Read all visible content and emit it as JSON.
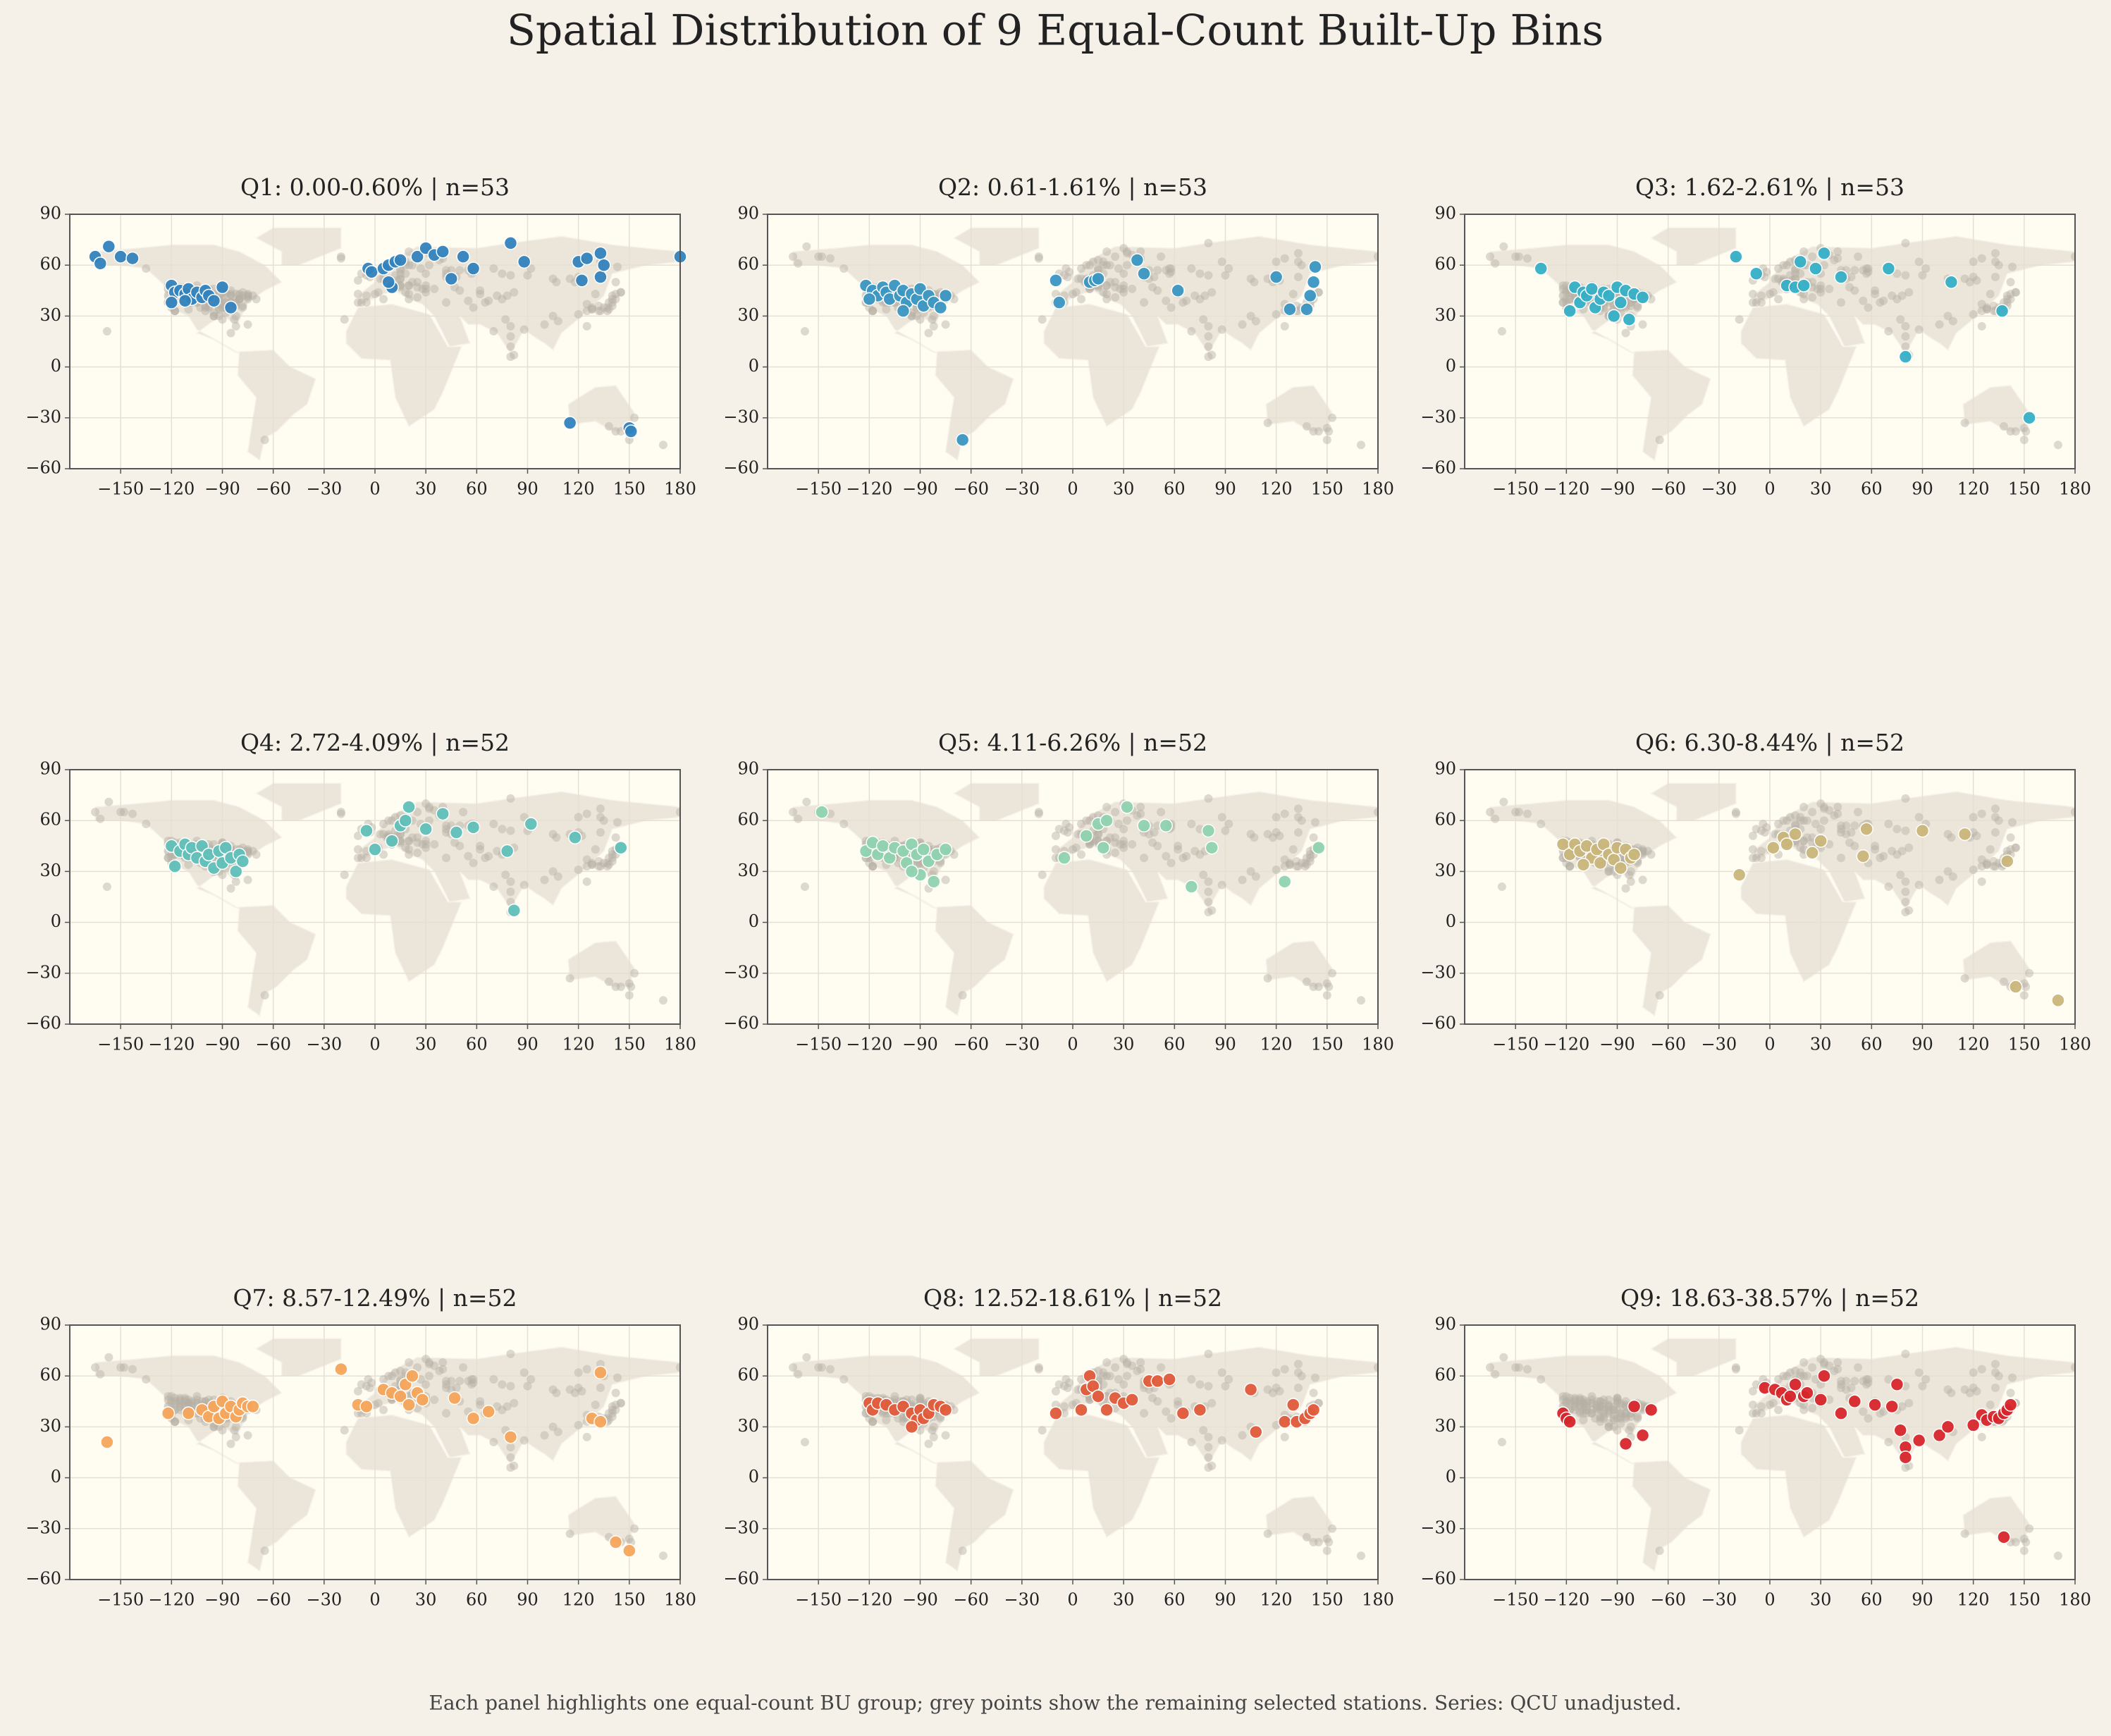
{
  "title": "Spatial Distribution of 9 Equal-Count Built-Up Bins",
  "note": "Each panel highlights one equal-count BU group; grey points show the remaining selected stations. Series: QCU unadjusted.",
  "chart_data": [
    {
      "type": "scatter",
      "title": "Q1: 0.00-0.60% | n=53",
      "color": "#3182bd",
      "grid": true,
      "xlim": [
        -180,
        180
      ],
      "ylim": [
        -60,
        90
      ],
      "xticks": [
        {
          "value": -150,
          "label": "−150"
        },
        {
          "value": -120,
          "label": "−120"
        },
        {
          "value": -90,
          "label": "−90"
        },
        {
          "value": -60,
          "label": "−60"
        },
        {
          "value": -30,
          "label": "−30"
        },
        0,
        30,
        60,
        90,
        120,
        150,
        180
      ],
      "yticks": [
        {
          "value": -60,
          "label": "−60"
        },
        {
          "value": -30,
          "label": "−30"
        },
        0,
        30,
        60,
        90
      ],
      "x": [
        -165,
        -162,
        -157,
        -150,
        -143,
        -120,
        -118,
        -115,
        -112,
        -110,
        -108,
        -105,
        -102,
        -100,
        -98,
        -95,
        -90,
        -85,
        -120,
        -112,
        -4,
        -2,
        5,
        8,
        10,
        12,
        15,
        8,
        25,
        30,
        35,
        40,
        45,
        52,
        58,
        80,
        88,
        120,
        122,
        125,
        133,
        133,
        135,
        115,
        150,
        151,
        180
      ],
      "values": [
        65,
        61,
        71,
        65,
        64,
        48,
        44,
        45,
        43,
        46,
        40,
        44,
        41,
        45,
        42,
        39,
        47,
        35,
        38,
        39,
        58,
        56,
        58,
        60,
        47,
        62,
        63,
        50,
        65,
        70,
        66,
        68,
        52,
        65,
        58,
        73,
        62,
        62,
        51,
        64,
        67,
        53,
        60,
        -33,
        -36,
        -38,
        65
      ]
    },
    {
      "type": "scatter",
      "title": "Q2: 0.61-1.61% | n=53",
      "color": "#3a96c2",
      "grid": true,
      "xlim": [
        -180,
        180
      ],
      "ylim": [
        -60,
        90
      ],
      "xticks": [
        {
          "value": -150,
          "label": "−150"
        },
        {
          "value": -120,
          "label": "−120"
        },
        {
          "value": -90,
          "label": "−90"
        },
        {
          "value": -60,
          "label": "−60"
        },
        {
          "value": -30,
          "label": "−30"
        },
        0,
        30,
        60,
        90,
        120,
        150,
        180
      ],
      "yticks": [
        {
          "value": -60,
          "label": "−60"
        },
        {
          "value": -30,
          "label": "−30"
        },
        0,
        30,
        60,
        90
      ],
      "x": [
        -122,
        -118,
        -115,
        -112,
        -110,
        -108,
        -105,
        -102,
        -100,
        -98,
        -95,
        -92,
        -90,
        -88,
        -85,
        -82,
        -78,
        -75,
        -120,
        -100,
        -65,
        -10,
        -8,
        10,
        13,
        15,
        38,
        42,
        62,
        120,
        128,
        138,
        140,
        143,
        142
      ],
      "values": [
        48,
        45,
        42,
        47,
        44,
        40,
        48,
        42,
        45,
        38,
        43,
        40,
        46,
        36,
        42,
        38,
        35,
        42,
        40,
        33,
        -43,
        51,
        38,
        50,
        51,
        52,
        63,
        55,
        45,
        53,
        34,
        34,
        42,
        59,
        50
      ]
    },
    {
      "type": "scatter",
      "title": "Q3: 1.62-2.61% | n=53",
      "color": "#35afc6",
      "grid": true,
      "xlim": [
        -180,
        180
      ],
      "ylim": [
        -60,
        90
      ],
      "xticks": [
        {
          "value": -150,
          "label": "−150"
        },
        {
          "value": -120,
          "label": "−120"
        },
        {
          "value": -90,
          "label": "−90"
        },
        {
          "value": -60,
          "label": "−60"
        },
        {
          "value": -30,
          "label": "−30"
        },
        0,
        30,
        60,
        90,
        120,
        150,
        180
      ],
      "yticks": [
        {
          "value": -60,
          "label": "−60"
        },
        {
          "value": -30,
          "label": "−30"
        },
        0,
        30,
        60,
        90
      ],
      "x": [
        -135,
        -115,
        -112,
        -110,
        -108,
        -105,
        -103,
        -100,
        -98,
        -95,
        -92,
        -90,
        -88,
        -85,
        -83,
        -80,
        -75,
        -118,
        -20,
        -8,
        10,
        15,
        18,
        20,
        27,
        32,
        42,
        70,
        80,
        107,
        137,
        153
      ],
      "values": [
        58,
        47,
        38,
        44,
        42,
        46,
        35,
        40,
        44,
        42,
        30,
        47,
        38,
        45,
        28,
        43,
        41,
        33,
        65,
        55,
        48,
        47,
        62,
        48,
        58,
        67,
        53,
        58,
        6,
        50,
        33,
        -30
      ]
    },
    {
      "type": "scatter",
      "title": "Q4: 2.72-4.09% | n=52",
      "color": "#5fc0b8",
      "grid": true,
      "xlim": [
        -180,
        180
      ],
      "ylim": [
        -60,
        90
      ],
      "xticks": [
        {
          "value": -150,
          "label": "−150"
        },
        {
          "value": -120,
          "label": "−120"
        },
        {
          "value": -90,
          "label": "−90"
        },
        {
          "value": -60,
          "label": "−60"
        },
        {
          "value": -30,
          "label": "−30"
        },
        0,
        30,
        60,
        90,
        120,
        150,
        180
      ],
      "yticks": [
        {
          "value": -60,
          "label": "−60"
        },
        {
          "value": -30,
          "label": "−30"
        },
        0,
        30,
        60,
        90
      ],
      "x": [
        -120,
        -118,
        -115,
        -112,
        -110,
        -108,
        -105,
        -102,
        -100,
        -98,
        -95,
        -92,
        -90,
        -88,
        -85,
        -82,
        -80,
        -78,
        -5,
        0,
        10,
        15,
        18,
        20,
        30,
        40,
        48,
        58,
        78,
        82,
        92,
        118,
        145
      ],
      "values": [
        45,
        33,
        42,
        46,
        40,
        44,
        38,
        45,
        36,
        40,
        32,
        42,
        35,
        44,
        38,
        30,
        40,
        36,
        54,
        43,
        48,
        57,
        60,
        68,
        55,
        64,
        53,
        56,
        42,
        7,
        58,
        50,
        44
      ]
    },
    {
      "type": "scatter",
      "title": "Q5: 4.11-6.26% | n=52",
      "color": "#8fd3b0",
      "grid": true,
      "xlim": [
        -180,
        180
      ],
      "ylim": [
        -60,
        90
      ],
      "xticks": [
        {
          "value": -150,
          "label": "−150"
        },
        {
          "value": -120,
          "label": "−120"
        },
        {
          "value": -90,
          "label": "−90"
        },
        {
          "value": -60,
          "label": "−60"
        },
        {
          "value": -30,
          "label": "−30"
        },
        0,
        30,
        60,
        90,
        120,
        150,
        180
      ],
      "yticks": [
        {
          "value": -60,
          "label": "−60"
        },
        {
          "value": -30,
          "label": "−30"
        },
        0,
        30,
        60,
        90
      ],
      "x": [
        -148,
        -122,
        -118,
        -115,
        -112,
        -108,
        -105,
        -100,
        -98,
        -95,
        -92,
        -90,
        -88,
        -85,
        -82,
        -80,
        -75,
        -95,
        -5,
        8,
        15,
        18,
        20,
        32,
        42,
        55,
        70,
        80,
        82,
        125,
        145
      ],
      "values": [
        65,
        42,
        47,
        40,
        45,
        38,
        44,
        42,
        35,
        46,
        40,
        28,
        43,
        36,
        24,
        40,
        43,
        30,
        38,
        51,
        58,
        44,
        60,
        68,
        57,
        57,
        21,
        54,
        44,
        24,
        44
      ]
    },
    {
      "type": "scatter",
      "title": "Q6: 6.30-8.44% | n=52",
      "color": "#c9b67a",
      "grid": true,
      "xlim": [
        -180,
        180
      ],
      "ylim": [
        -60,
        90
      ],
      "xticks": [
        {
          "value": -150,
          "label": "−150"
        },
        {
          "value": -120,
          "label": "−120"
        },
        {
          "value": -90,
          "label": "−90"
        },
        {
          "value": -60,
          "label": "−60"
        },
        {
          "value": -30,
          "label": "−30"
        },
        0,
        30,
        60,
        90,
        120,
        150,
        180
      ],
      "yticks": [
        {
          "value": -60,
          "label": "−60"
        },
        {
          "value": -30,
          "label": "−30"
        },
        0,
        30,
        60,
        90
      ],
      "x": [
        -122,
        -118,
        -115,
        -112,
        -108,
        -105,
        -102,
        -100,
        -98,
        -95,
        -92,
        -90,
        -88,
        -85,
        -82,
        -80,
        -110,
        -18,
        2,
        8,
        10,
        15,
        25,
        30,
        55,
        57,
        90,
        115,
        140,
        145,
        170
      ],
      "values": [
        46,
        40,
        46,
        42,
        45,
        38,
        43,
        35,
        46,
        40,
        37,
        44,
        32,
        43,
        38,
        40,
        34,
        28,
        44,
        50,
        46,
        52,
        41,
        48,
        39,
        55,
        54,
        52,
        36,
        -38,
        -46
      ]
    },
    {
      "type": "scatter",
      "title": "Q7: 8.57-12.49% | n=52",
      "color": "#f5a55a",
      "grid": true,
      "xlim": [
        -180,
        180
      ],
      "ylim": [
        -60,
        90
      ],
      "xticks": [
        {
          "value": -150,
          "label": "−150"
        },
        {
          "value": -120,
          "label": "−120"
        },
        {
          "value": -90,
          "label": "−90"
        },
        {
          "value": -60,
          "label": "−60"
        },
        {
          "value": -30,
          "label": "−30"
        },
        0,
        30,
        60,
        90,
        120,
        150,
        180
      ],
      "yticks": [
        {
          "value": -60,
          "label": "−60"
        },
        {
          "value": -30,
          "label": "−30"
        },
        0,
        30,
        60,
        90
      ],
      "x": [
        -158,
        -122,
        -110,
        -102,
        -98,
        -95,
        -92,
        -90,
        -88,
        -85,
        -82,
        -80,
        -78,
        -75,
        -72,
        -20,
        -10,
        -5,
        5,
        10,
        15,
        18,
        20,
        22,
        25,
        28,
        47,
        58,
        67,
        80,
        128,
        133,
        133,
        142,
        150
      ],
      "values": [
        21,
        38,
        38,
        40,
        36,
        42,
        35,
        45,
        38,
        42,
        36,
        40,
        44,
        42,
        42,
        64,
        43,
        42,
        52,
        50,
        48,
        55,
        43,
        60,
        50,
        46,
        47,
        35,
        39,
        24,
        35,
        62,
        33,
        -38,
        -43
      ]
    },
    {
      "type": "scatter",
      "title": "Q8: 12.52-18.61% | n=52",
      "color": "#e05a3a",
      "grid": true,
      "xlim": [
        -180,
        180
      ],
      "ylim": [
        -60,
        90
      ],
      "xticks": [
        {
          "value": -150,
          "label": "−150"
        },
        {
          "value": -120,
          "label": "−120"
        },
        {
          "value": -90,
          "label": "−90"
        },
        {
          "value": -60,
          "label": "−60"
        },
        {
          "value": -30,
          "label": "−30"
        },
        0,
        30,
        60,
        90,
        120,
        150,
        180
      ],
      "yticks": [
        {
          "value": -60,
          "label": "−60"
        },
        {
          "value": -30,
          "label": "−30"
        },
        0,
        30,
        60,
        90
      ],
      "x": [
        -120,
        -118,
        -115,
        -110,
        -105,
        -100,
        -95,
        -92,
        -90,
        -88,
        -85,
        -82,
        -78,
        -75,
        -95,
        -10,
        5,
        8,
        10,
        12,
        15,
        20,
        25,
        30,
        35,
        45,
        50,
        57,
        65,
        75,
        105,
        108,
        125,
        130,
        132,
        137,
        140,
        142
      ],
      "values": [
        44,
        40,
        44,
        43,
        40,
        42,
        38,
        34,
        40,
        35,
        38,
        43,
        42,
        40,
        30,
        38,
        40,
        52,
        60,
        54,
        48,
        40,
        47,
        44,
        46,
        57,
        57,
        58,
        38,
        40,
        52,
        27,
        33,
        43,
        33,
        35,
        38,
        40
      ]
    },
    {
      "type": "scatter",
      "title": "Q9: 18.63-38.57% | n=52",
      "color": "#d7262b",
      "grid": true,
      "xlim": [
        -180,
        180
      ],
      "ylim": [
        -60,
        90
      ],
      "xticks": [
        {
          "value": -150,
          "label": "−150"
        },
        {
          "value": -120,
          "label": "−120"
        },
        {
          "value": -90,
          "label": "−90"
        },
        {
          "value": -60,
          "label": "−60"
        },
        {
          "value": -30,
          "label": "−30"
        },
        0,
        30,
        60,
        90,
        120,
        150,
        180
      ],
      "yticks": [
        {
          "value": -60,
          "label": "−60"
        },
        {
          "value": -30,
          "label": "−30"
        },
        0,
        30,
        60,
        90
      ],
      "x": [
        -122,
        -120,
        -118,
        -85,
        -80,
        -75,
        -70,
        -3,
        3,
        7,
        10,
        12,
        15,
        20,
        22,
        30,
        32,
        42,
        50,
        62,
        72,
        75,
        77,
        80,
        80,
        88,
        100,
        105,
        120,
        125,
        128,
        132,
        135,
        138,
        140,
        142,
        138
      ],
      "values": [
        38,
        35,
        33,
        20,
        42,
        25,
        40,
        53,
        52,
        50,
        46,
        48,
        55,
        48,
        50,
        46,
        60,
        38,
        45,
        43,
        42,
        55,
        28,
        18,
        12,
        22,
        25,
        30,
        31,
        37,
        34,
        36,
        35,
        38,
        40,
        43,
        -35
      ]
    }
  ]
}
